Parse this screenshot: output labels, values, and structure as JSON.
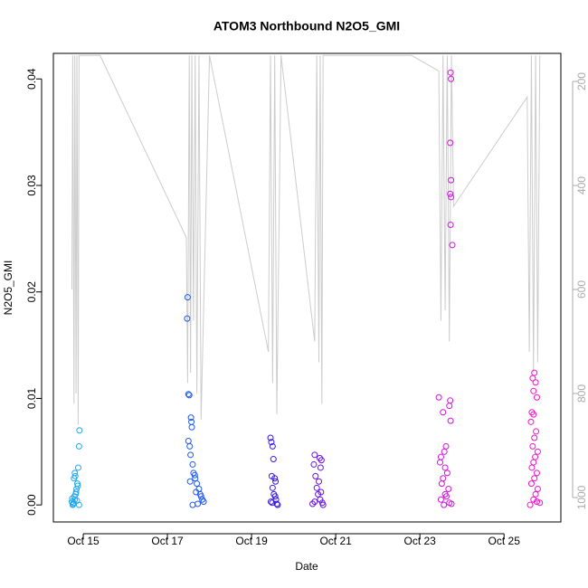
{
  "chart_data": {
    "type": "scatter",
    "title": "ATOM3 Northbound N2O5_GMI",
    "x_label": "Date",
    "y_label": "N2O5_GMI",
    "xlim": [
      14.29,
      26.35
    ],
    "xticks": [
      {
        "value": 15,
        "label": "Oct 15"
      },
      {
        "value": 17,
        "label": "Oct 17"
      },
      {
        "value": 19,
        "label": "Oct 19"
      },
      {
        "value": 21,
        "label": "Oct 21"
      },
      {
        "value": 23,
        "label": "Oct 23"
      },
      {
        "value": 25,
        "label": "Oct 25"
      }
    ],
    "ylim": [
      -0.0016,
      0.0424
    ],
    "yticks": [
      {
        "value": 0,
        "label": "0.00"
      },
      {
        "value": 0.01,
        "label": "0.01"
      },
      {
        "value": 0.02,
        "label": "0.02"
      },
      {
        "value": 0.03,
        "label": "0.03"
      },
      {
        "value": 0.04,
        "label": "0.04"
      }
    ],
    "y2lim": [
      1047,
      146
    ],
    "y2ticks": [
      200,
      400,
      600,
      800,
      1000
    ],
    "series": [
      {
        "type": "line",
        "axis": "y2",
        "color": "#cccccc",
        "x": [
          14.73,
          14.75,
          14.78,
          14.8,
          14.83,
          14.85,
          14.88,
          14.9,
          15.4,
          17.45,
          17.48,
          17.52,
          17.55,
          17.58,
          17.62,
          17.66,
          17.7,
          17.75,
          17.8,
          18.0,
          19.4,
          19.45,
          19.5,
          19.55,
          19.6,
          19.7,
          20.5,
          20.55,
          20.6,
          20.63,
          20.67,
          20.7,
          20.75,
          22.8,
          23.45,
          23.5,
          23.55,
          23.6,
          23.65,
          23.7,
          23.75,
          23.8,
          25.55,
          25.6,
          25.65,
          25.7,
          25.75,
          25.8,
          25.85
        ],
        "values": [
          600,
          150,
          820,
          150,
          800,
          150,
          860,
          150,
          150,
          500,
          780,
          150,
          760,
          150,
          660,
          150,
          800,
          150,
          850,
          150,
          720,
          150,
          780,
          150,
          840,
          150,
          700,
          150,
          740,
          150,
          820,
          150,
          150,
          150,
          180,
          660,
          150,
          640,
          150,
          700,
          150,
          440,
          230,
          720,
          150,
          760,
          150,
          740,
          150
        ]
      },
      {
        "type": "scatter",
        "color": "#1ea8f0",
        "x": [
          14.75,
          14.77,
          14.8,
          14.82,
          14.84,
          14.86,
          14.78,
          14.8,
          14.88,
          14.9,
          14.91,
          14.87,
          14.73,
          14.76,
          14.79,
          14.83,
          14.85,
          14.9,
          14.74,
          14.81
        ],
        "values": [
          0,
          0.0002,
          0.0005,
          0.001,
          0.0015,
          0.002,
          0.0025,
          0.003,
          0.0035,
          0.0055,
          0.007,
          0.0018,
          0.0003,
          0.0001,
          0.0008,
          0.0012,
          0.0004,
          0,
          0.0006,
          0.0027
        ]
      },
      {
        "type": "scatter",
        "color": "#1f5af2",
        "x": [
          17.48,
          17.47,
          17.5,
          17.52,
          17.56,
          17.57,
          17.58,
          17.5,
          17.53,
          17.55,
          17.6,
          17.62,
          17.66,
          17.7,
          17.75,
          17.78,
          17.8,
          17.83,
          17.86,
          17.72,
          17.6,
          17.54,
          17.65,
          17.68
        ],
        "values": [
          0.0195,
          0.0175,
          0.0104,
          0.0103,
          0.0082,
          0.0078,
          0.0073,
          0.006,
          0.0055,
          0.0047,
          0.0038,
          0.003,
          0.0025,
          0.002,
          0.0015,
          0.001,
          0.0008,
          0.0005,
          0.0003,
          0.0001,
          0,
          0.0022,
          0.0028,
          0.0012
        ]
      },
      {
        "type": "scatter",
        "color": "#3a16e8",
        "x": [
          19.45,
          19.47,
          19.5,
          19.52,
          19.48,
          19.55,
          19.57,
          19.5,
          19.53,
          19.58,
          19.46,
          19.6,
          19.62,
          19.49,
          19.56
        ],
        "values": [
          0.0063,
          0.0059,
          0.0055,
          0.0043,
          0.0027,
          0.0025,
          0.0022,
          0.0016,
          0.001,
          0.0005,
          0.0003,
          0.0001,
          0,
          0.0002,
          0.0008
        ]
      },
      {
        "type": "scatter",
        "color": "#6a12e2",
        "x": [
          20.5,
          20.62,
          20.66,
          20.48,
          20.64,
          20.52,
          20.6,
          20.55,
          20.58,
          20.63,
          20.68,
          20.7,
          20.45,
          20.5,
          20.65
        ],
        "values": [
          0.0047,
          0.0044,
          0.0042,
          0.0038,
          0.0035,
          0.0027,
          0.0022,
          0.0016,
          0.001,
          0.0005,
          0.0002,
          0,
          0.0001,
          0.0003,
          0.0012
        ]
      },
      {
        "type": "scatter",
        "color": "#d412e0",
        "x": [
          23.73,
          23.74,
          23.72,
          23.74,
          23.72,
          23.74,
          23.73,
          23.77,
          23.45,
          23.72,
          23.7,
          23.55,
          23.73,
          23.62,
          23.58,
          23.5,
          23.48,
          23.6,
          23.65,
          23.55,
          23.52,
          23.68,
          23.6,
          23.5,
          23.7,
          23.57,
          23.75,
          23.63
        ],
        "values": [
          0.0406,
          0.04,
          0.034,
          0.0305,
          0.0292,
          0.0289,
          0.0263,
          0.0244,
          0.0101,
          0.0098,
          0.0093,
          0.0087,
          0.0079,
          0.0055,
          0.005,
          0.0045,
          0.004,
          0.0035,
          0.003,
          0.0025,
          0.002,
          0.0015,
          0.001,
          0.0005,
          0.0002,
          0,
          0.0001,
          0.0008
        ]
      },
      {
        "type": "scatter",
        "color": "#f012cc",
        "x": [
          25.72,
          25.68,
          25.75,
          25.7,
          25.78,
          25.66,
          25.7,
          25.64,
          25.76,
          25.72,
          25.68,
          25.8,
          25.74,
          25.7,
          25.66,
          25.78,
          25.72,
          25.65,
          25.8,
          25.75,
          25.7,
          25.85,
          25.62,
          25.78
        ],
        "values": [
          0.0124,
          0.0119,
          0.0115,
          0.0107,
          0.0101,
          0.0087,
          0.0085,
          0.0078,
          0.0069,
          0.0063,
          0.0055,
          0.005,
          0.0045,
          0.004,
          0.0035,
          0.003,
          0.0025,
          0.002,
          0.0015,
          0.001,
          0.0005,
          0.0002,
          0,
          0.0003
        ]
      }
    ]
  }
}
